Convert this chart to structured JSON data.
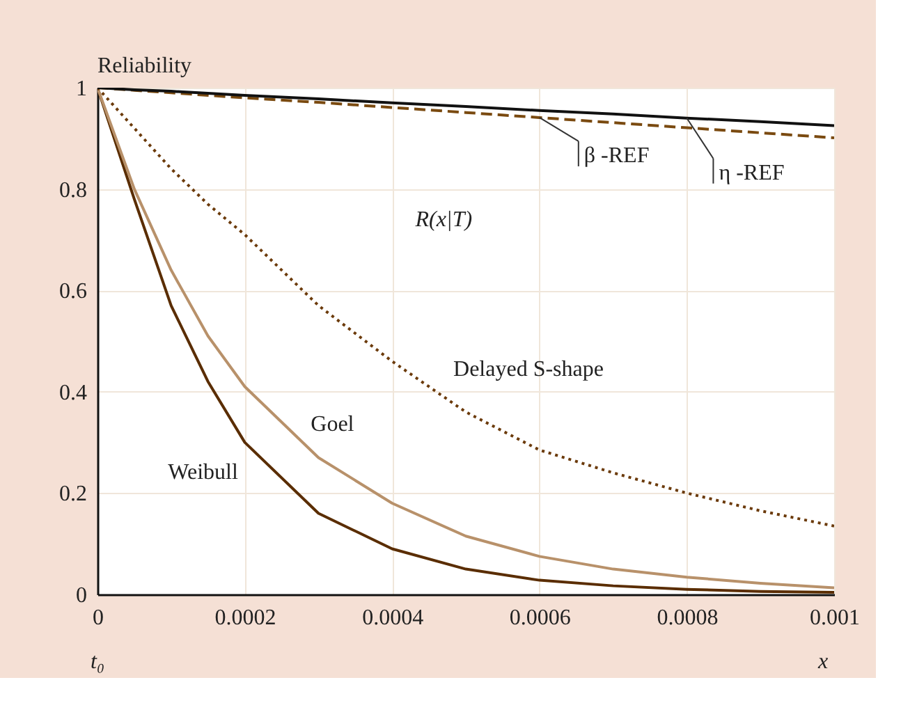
{
  "chart_data": {
    "type": "line",
    "ylabel": "Reliability",
    "x": [
      0,
      5e-05,
      0.0001,
      0.00015,
      0.0002,
      0.0003,
      0.0004,
      0.0005,
      0.0006,
      0.0007,
      0.0008,
      0.0009,
      0.001
    ],
    "series": [
      {
        "name": "Weibull",
        "color": "#5a2d00",
        "line_style": "solid",
        "values": [
          1,
          0.78,
          0.57,
          0.42,
          0.3,
          0.16,
          0.09,
          0.05,
          0.028,
          0.017,
          0.01,
          0.006,
          0.004
        ]
      },
      {
        "name": "Goel",
        "color": "#b8916a",
        "line_style": "solid",
        "values": [
          1,
          0.8,
          0.64,
          0.51,
          0.41,
          0.27,
          0.18,
          0.115,
          0.075,
          0.05,
          0.034,
          0.022,
          0.013
        ]
      },
      {
        "name": "Delayed S-shape",
        "color": "#6b3a0a",
        "line_style": "dotted",
        "values": [
          1,
          0.92,
          0.84,
          0.77,
          0.71,
          0.57,
          0.46,
          0.36,
          0.285,
          0.24,
          0.2,
          0.165,
          0.135
        ]
      },
      {
        "name": "β -REF",
        "color": "#7a4a10",
        "line_style": "dashed",
        "values": [
          1,
          0.995,
          0.99,
          0.985,
          0.98,
          0.971,
          0.961,
          0.951,
          0.941,
          0.931,
          0.921,
          0.911,
          0.901
        ]
      },
      {
        "name": "η -REF",
        "color": "#111111",
        "line_style": "solid",
        "values": [
          1,
          0.996,
          0.993,
          0.989,
          0.985,
          0.978,
          0.97,
          0.963,
          0.955,
          0.948,
          0.94,
          0.933,
          0.925
        ]
      }
    ],
    "xlim": [
      0,
      0.001
    ],
    "xticks": [
      0,
      0.0002,
      0.0004,
      0.0006,
      0.0008,
      0.001
    ],
    "ylim": [
      0,
      1
    ],
    "yticks": [
      0,
      0.2,
      0.4,
      0.6,
      0.8,
      1
    ],
    "grid": true,
    "marker": "none",
    "annotations": [
      "R(x|T)",
      "t₀",
      "x"
    ]
  }
}
